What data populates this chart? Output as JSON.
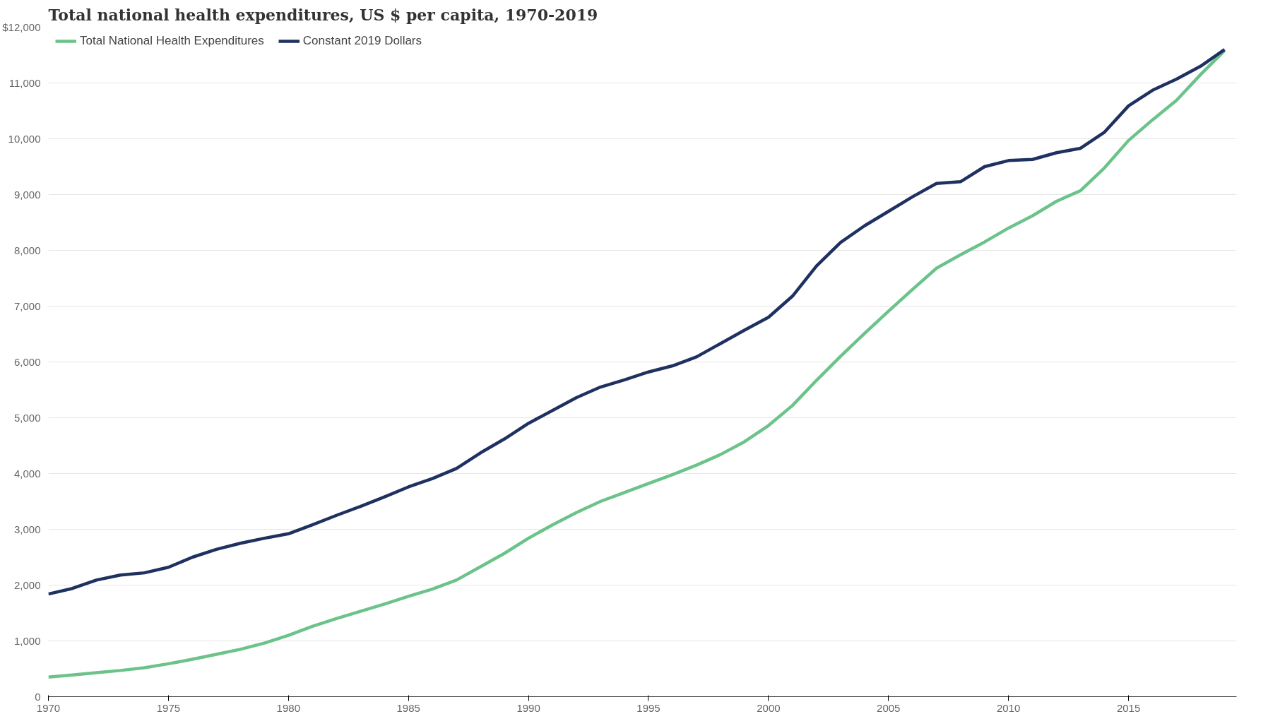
{
  "chart_data": {
    "type": "line",
    "title": "Total national health expenditures, US $ per capita, 1970-2019",
    "x": [
      1970,
      1971,
      1972,
      1973,
      1974,
      1975,
      1976,
      1977,
      1978,
      1979,
      1980,
      1981,
      1982,
      1983,
      1984,
      1985,
      1986,
      1987,
      1988,
      1989,
      1990,
      1991,
      1992,
      1993,
      1994,
      1995,
      1996,
      1997,
      1998,
      1999,
      2000,
      2001,
      2002,
      2003,
      2004,
      2005,
      2006,
      2007,
      2008,
      2009,
      2010,
      2011,
      2012,
      2013,
      2014,
      2015,
      2016,
      2017,
      2018,
      2019
    ],
    "series": [
      {
        "name": "Total National Health Expenditures",
        "color": "#6cc38a",
        "values": [
          350,
          390,
          430,
          470,
          520,
          590,
          670,
          760,
          850,
          960,
          1100,
          1260,
          1400,
          1530,
          1660,
          1800,
          1930,
          2090,
          2330,
          2570,
          2840,
          3080,
          3300,
          3500,
          3660,
          3820,
          3980,
          4150,
          4340,
          4570,
          4860,
          5220,
          5670,
          6100,
          6510,
          6910,
          7300,
          7680,
          7920,
          8150,
          8400,
          8620,
          8880,
          9070,
          9480,
          9970,
          10340,
          10690,
          11150,
          11580
        ]
      },
      {
        "name": "Constant 2019 Dollars",
        "color": "#1f3160",
        "values": [
          1840,
          1940,
          2090,
          2180,
          2220,
          2320,
          2500,
          2640,
          2750,
          2840,
          2920,
          3080,
          3250,
          3410,
          3580,
          3760,
          3910,
          4090,
          4370,
          4620,
          4900,
          5130,
          5360,
          5550,
          5680,
          5820,
          5930,
          6090,
          6330,
          6570,
          6800,
          7180,
          7720,
          8140,
          8440,
          8700,
          8960,
          9200,
          9230,
          9500,
          9610,
          9630,
          9750,
          9830,
          10120,
          10590,
          10870,
          11070,
          11300,
          11600
        ]
      }
    ],
    "xlim": [
      1970,
      2019.5
    ],
    "xticks": [
      1970,
      1975,
      1980,
      1985,
      1990,
      1995,
      2000,
      2005,
      2010,
      2015
    ],
    "ylim": [
      0,
      12000
    ],
    "yticks": [
      0,
      {
        "value": 1000,
        "label": "1,000"
      },
      {
        "value": 2000,
        "label": "2,000"
      },
      {
        "value": 3000,
        "label": "3,000"
      },
      {
        "value": 4000,
        "label": "4,000"
      },
      {
        "value": 5000,
        "label": "5,000"
      },
      {
        "value": 6000,
        "label": "6,000"
      },
      {
        "value": 7000,
        "label": "7,000"
      },
      {
        "value": 8000,
        "label": "8,000"
      },
      {
        "value": 9000,
        "label": "9,000"
      },
      {
        "value": 10000,
        "label": "10,000"
      },
      {
        "value": 11000,
        "label": "11,000"
      },
      {
        "value": 12000,
        "label": "$12,000"
      }
    ],
    "grid": "y",
    "legend": "top left",
    "marker": "none",
    "line_style": "solid"
  }
}
